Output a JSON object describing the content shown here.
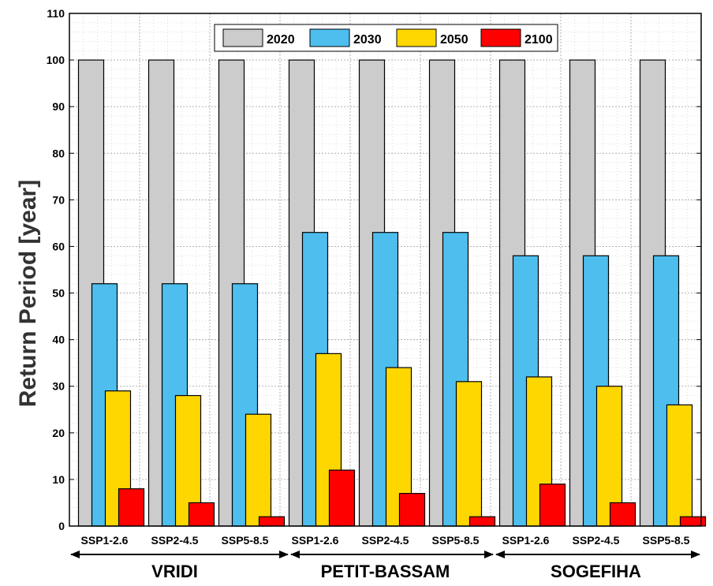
{
  "chart_data": {
    "type": "bar",
    "title": "",
    "xlabel": "",
    "ylabel": "Return Period [year]",
    "ylim": [
      0,
      110
    ],
    "yticks": [
      "0",
      "10",
      "20",
      "30",
      "40",
      "50",
      "60",
      "70",
      "80",
      "90",
      "100",
      "110"
    ],
    "grid": true,
    "legend_position": "top-center",
    "groups": [
      "VRIDI",
      "PETIT-BASSAM",
      "SOGEFIHA"
    ],
    "categories": [
      "SSP1-2.6",
      "SSP2-4.5",
      "SSP5-8.5",
      "SSP1-2.6",
      "SSP2-4.5",
      "SSP5-8.5",
      "SSP1-2.6",
      "SSP2-4.5",
      "SSP5-8.5"
    ],
    "series": [
      {
        "name": "2020",
        "color": "#cccccc",
        "values": [
          100,
          100,
          100,
          100,
          100,
          100,
          100,
          100,
          100
        ]
      },
      {
        "name": "2030",
        "color": "#4dbeee",
        "values": [
          52,
          52,
          52,
          63,
          63,
          63,
          58,
          58,
          58
        ]
      },
      {
        "name": "2050",
        "color": "#ffd700",
        "values": [
          29,
          28,
          24,
          37,
          34,
          31,
          32,
          30,
          26
        ]
      },
      {
        "name": "2100",
        "color": "#ff0000",
        "values": [
          8,
          5,
          2,
          12,
          7,
          2,
          9,
          5,
          2
        ]
      }
    ]
  }
}
